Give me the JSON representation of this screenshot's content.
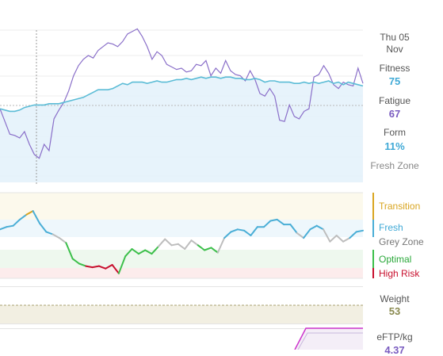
{
  "colors": {
    "fitness": "#5bbcd6",
    "fatigue": "#8a6fc9",
    "form_fresh": "#4aaed6",
    "form_grey": "#bdbdbd",
    "form_optimal": "#3cbf4a",
    "form_high_risk": "#c8102e",
    "form_transition": "#d9a520",
    "weight": "#8a8a50",
    "eftp": "#cc33cc"
  },
  "sidebar": {
    "date_line1": "Thu 05",
    "date_line2": "Nov",
    "fitness_label": "Fitness",
    "fitness_value": "75",
    "fatigue_label": "Fatigue",
    "fatigue_value": "67",
    "form_label": "Form",
    "form_value": "11%",
    "form_zone": "Fresh Zone",
    "weight_label": "Weight",
    "weight_value": "53",
    "eftp_label": "eFTP/kg",
    "eftp_value": "4.37"
  },
  "zones": {
    "transition": "Transition",
    "fresh": "Fresh",
    "grey": "Grey Zone",
    "optimal": "Optimal",
    "high_risk": "High Risk"
  },
  "chart_data": [
    {
      "type": "line",
      "title": "",
      "ylim": [
        0,
        120
      ],
      "series": [
        {
          "name": "Fitness",
          "values": [
            58,
            57,
            56,
            56,
            57,
            59,
            60,
            61,
            61,
            61,
            62,
            62,
            62,
            63,
            64,
            65,
            66,
            67,
            69,
            71,
            73,
            73,
            73,
            74,
            76,
            78,
            77,
            79,
            79,
            79,
            78,
            79,
            80,
            79,
            79,
            80,
            81,
            81,
            82,
            81,
            82,
            83,
            82,
            83,
            83,
            82,
            83,
            83,
            82,
            82,
            81,
            81,
            82,
            81,
            79,
            80,
            80,
            79,
            79,
            79,
            78,
            78,
            79,
            78,
            79,
            78,
            79,
            80,
            78,
            79,
            77,
            79,
            78,
            77,
            76
          ]
        },
        {
          "name": "Fatigue",
          "values": [
            58,
            48,
            38,
            37,
            35,
            40,
            30,
            22,
            19,
            30,
            25,
            50,
            57,
            63,
            72,
            84,
            92,
            97,
            100,
            98,
            104,
            107,
            110,
            109,
            107,
            111,
            117,
            119,
            121,
            115,
            107,
            97,
            103,
            100,
            93,
            91,
            89,
            90,
            87,
            88,
            93,
            92,
            96,
            84,
            90,
            86,
            96,
            88,
            85,
            84,
            80,
            88,
            81,
            70,
            68,
            74,
            68,
            49,
            48,
            61,
            52,
            50,
            56,
            58,
            83,
            85,
            92,
            86,
            77,
            74,
            79,
            77,
            76,
            90,
            78
          ]
        }
      ]
    },
    {
      "type": "line",
      "title": "",
      "ylim": [
        -40,
        30
      ],
      "series": [
        {
          "name": "Form",
          "values": [
            0,
            2,
            3,
            8,
            12,
            15,
            5,
            -2,
            -4,
            -7,
            -11,
            -24,
            -28,
            -30,
            -31,
            -30,
            -32,
            -29,
            -36,
            -22,
            -16,
            -20,
            -17,
            -20,
            -14,
            -8,
            -13,
            -12,
            -16,
            -9,
            -13,
            -17,
            -15,
            -19,
            -7,
            -2,
            0,
            -1,
            -5,
            2,
            2,
            7,
            8,
            4,
            4,
            -3,
            -7,
            0,
            3,
            0,
            -10,
            -5,
            -10,
            -7,
            -2,
            -1
          ]
        }
      ]
    },
    {
      "type": "line",
      "title": "",
      "ylim": [
        0,
        100
      ],
      "series": [
        {
          "name": "Weight",
          "values": [
            53,
            53,
            53,
            53,
            53,
            53,
            53,
            53,
            53,
            53,
            53,
            53,
            53,
            53,
            53,
            53,
            53,
            53,
            53,
            53,
            53,
            53,
            53,
            53,
            53,
            53,
            53,
            53,
            53,
            53
          ]
        }
      ]
    },
    {
      "type": "line",
      "title": "",
      "ylim": [
        4.0,
        4.5
      ],
      "series": [
        {
          "name": "eFTP/kg",
          "values": [
            4.37,
            4.37,
            4.37,
            4.37,
            4.37
          ]
        }
      ]
    }
  ]
}
